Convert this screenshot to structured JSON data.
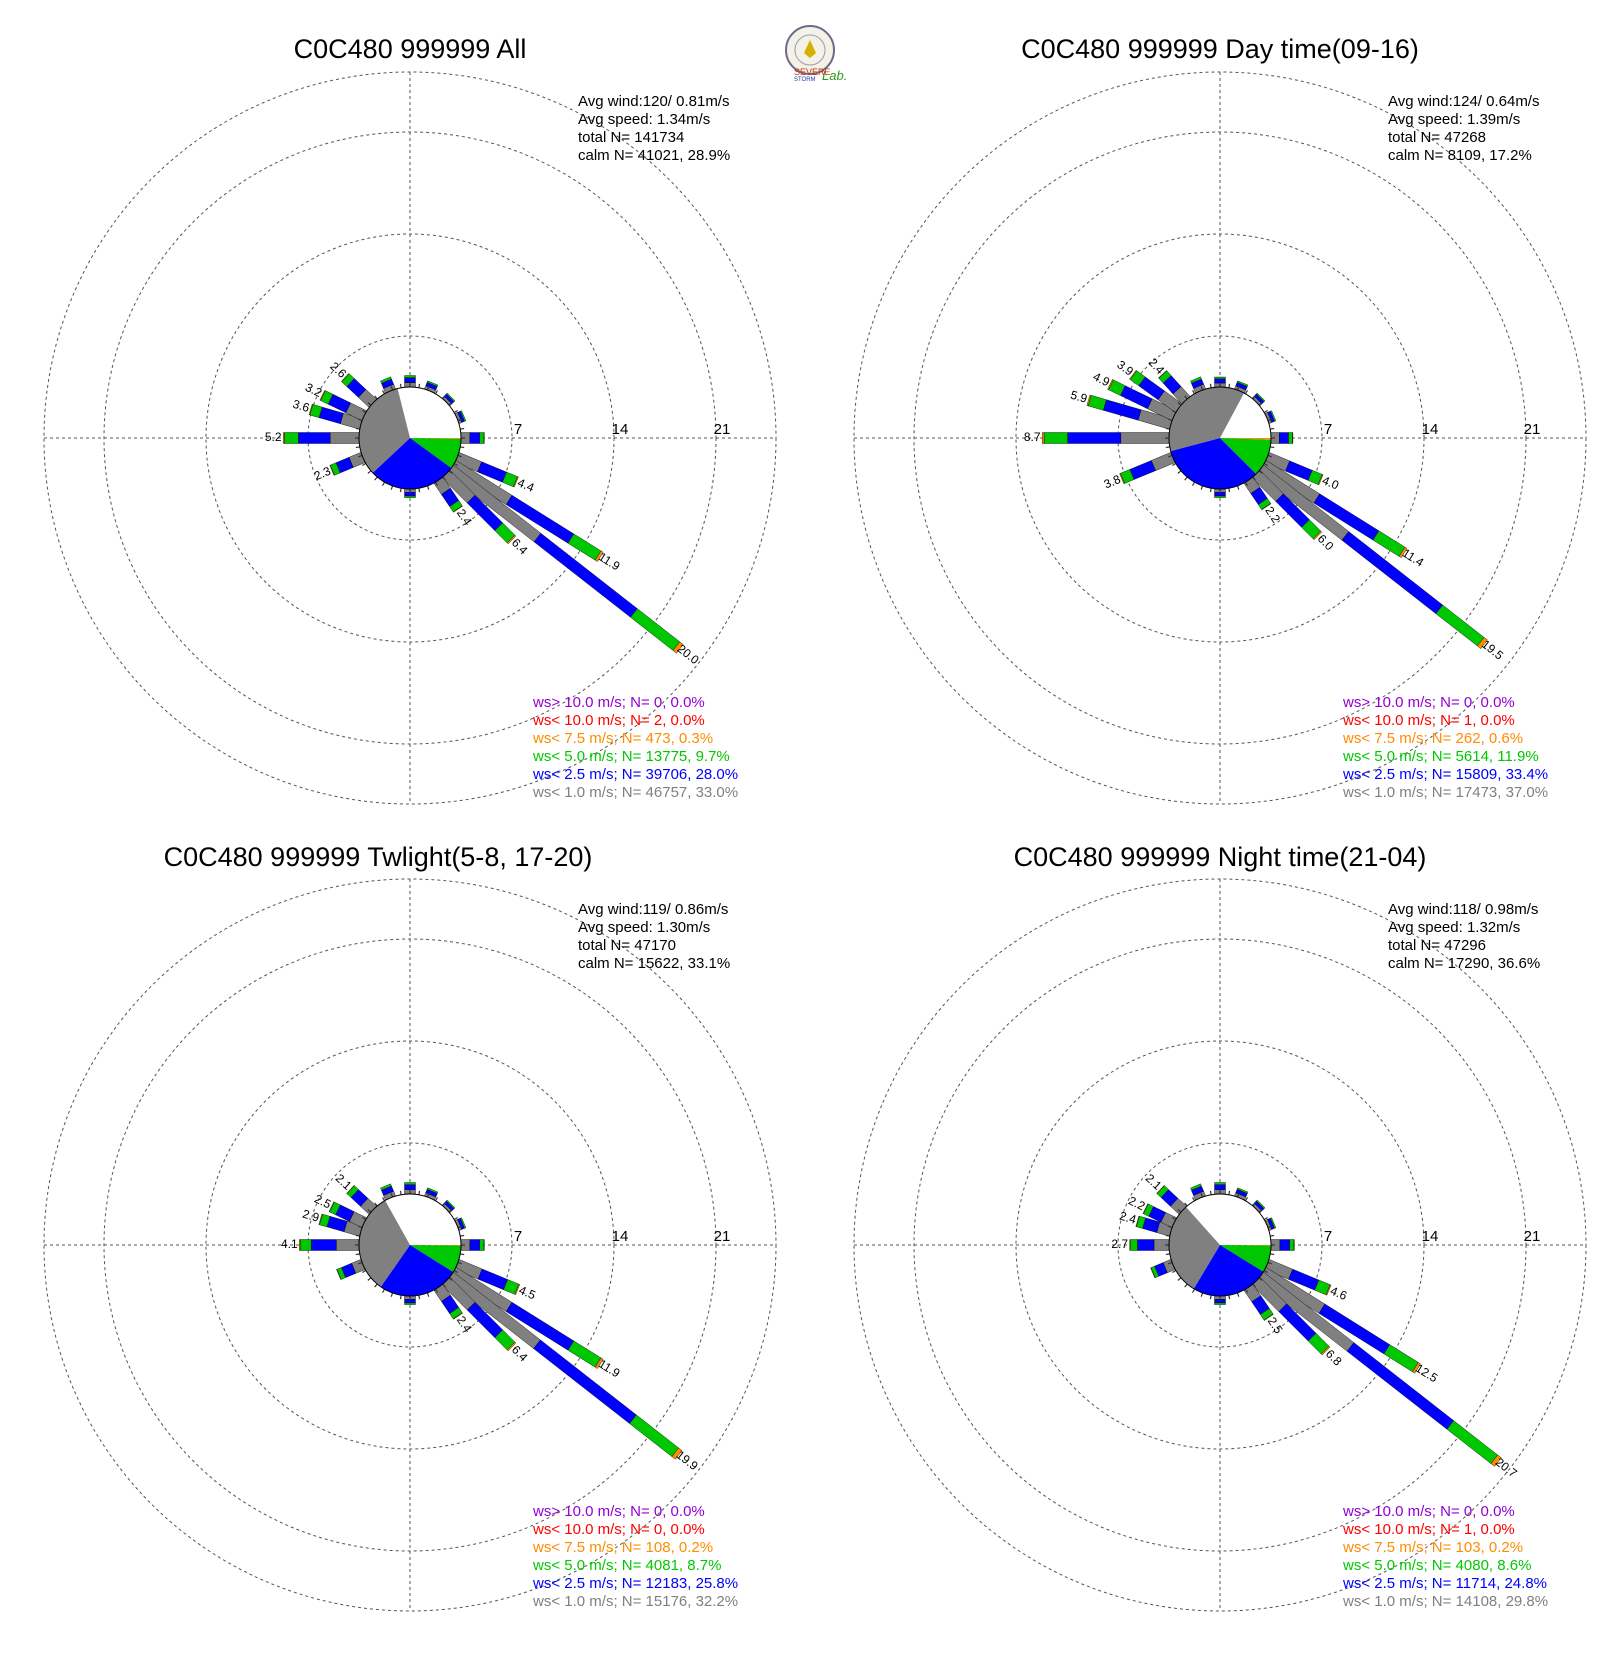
{
  "logo": {
    "text_a": "SEVERE",
    "text_b": "STORM",
    "text_c": "Lab."
  },
  "colors": {
    "calm": "#ffffff",
    "ws_lt_1": "#808080",
    "ws_lt_2_5": "#0000ff",
    "ws_lt_5": "#00c800",
    "ws_lt_7_5": "#ff8c00",
    "ws_lt_10": "#ff0000",
    "ws_gt_10": "#9400d3"
  },
  "ring_labels": [
    "7",
    "14",
    "21"
  ],
  "chart_data": [
    {
      "type": "polar-bar",
      "title": "C0C480 999999 All",
      "stats": [
        "Avg wind:120/ 0.81m/s",
        "Avg speed: 1.34m/s",
        "total N=      141734",
        "calm N=  41021,  28.9%"
      ],
      "pie": {
        "calm": 28.9,
        "lt1": 33.0,
        "lt2_5": 28.0,
        "lt5": 9.7,
        "lt7_5": 0.3
      },
      "rmax": 21,
      "bars": [
        {
          "dir": 0,
          "total": 0.8,
          "label": ""
        },
        {
          "dir": 22.5,
          "total": 0.6,
          "label": ""
        },
        {
          "dir": 45,
          "total": 0.5,
          "label": ""
        },
        {
          "dir": 67.5,
          "total": 0.5,
          "label": ""
        },
        {
          "dir": 90,
          "total": 1.6,
          "label": ""
        },
        {
          "dir": 112.5,
          "total": 4.4,
          "label": "4.4"
        },
        {
          "dir": 122,
          "total": 11.9,
          "label": "11.9"
        },
        {
          "dir": 128,
          "total": 20.0,
          "label": "20.0"
        },
        {
          "dir": 135,
          "total": 6.4,
          "label": "6.4"
        },
        {
          "dir": 146,
          "total": 2.4,
          "label": "2.4"
        },
        {
          "dir": 180,
          "total": 0.6,
          "label": ""
        },
        {
          "dir": 247.5,
          "total": 2.3,
          "label": "2.3"
        },
        {
          "dir": 270,
          "total": 5.2,
          "label": "5.2"
        },
        {
          "dir": 286,
          "total": 3.6,
          "label": "3.6"
        },
        {
          "dir": 296,
          "total": 3.2,
          "label": "3.2"
        },
        {
          "dir": 313,
          "total": 2.6,
          "label": "2.6"
        },
        {
          "dir": 337.5,
          "total": 0.9,
          "label": ""
        }
      ],
      "legend": [
        {
          "text": "ws> 10.0 m/s; N=     0,  0.0%",
          "color": "#9400d3"
        },
        {
          "text": "ws< 10.0 m/s; N=     2,  0.0%",
          "color": "#ff0000"
        },
        {
          "text": "ws<  7.5 m/s; N=   473,  0.3%",
          "color": "#ff8c00"
        },
        {
          "text": "ws<  5.0 m/s; N= 13775,  9.7%",
          "color": "#00c800"
        },
        {
          "text": "ws<  2.5 m/s; N= 39706, 28.0%",
          "color": "#0000ff"
        },
        {
          "text": "ws<  1.0 m/s; N= 46757, 33.0%",
          "color": "#808080"
        }
      ]
    },
    {
      "type": "polar-bar",
      "title": "C0C480 999999 Day time(09-16)",
      "stats": [
        "Avg wind:124/ 0.64m/s",
        "Avg speed: 1.39m/s",
        "total N=       47268",
        "calm N=   8109,  17.2%"
      ],
      "pie": {
        "calm": 17.2,
        "lt1": 37.0,
        "lt2_5": 33.4,
        "lt5": 11.9,
        "lt7_5": 0.6
      },
      "rmax": 21,
      "bars": [
        {
          "dir": 0,
          "total": 0.7,
          "label": ""
        },
        {
          "dir": 22.5,
          "total": 0.6,
          "label": ""
        },
        {
          "dir": 45,
          "total": 0.5,
          "label": ""
        },
        {
          "dir": 67.5,
          "total": 0.5,
          "label": ""
        },
        {
          "dir": 90,
          "total": 1.5,
          "label": ""
        },
        {
          "dir": 112.5,
          "total": 4.0,
          "label": "4.0"
        },
        {
          "dir": 122,
          "total": 11.4,
          "label": "11.4"
        },
        {
          "dir": 128,
          "total": 19.5,
          "label": "19.5"
        },
        {
          "dir": 135,
          "total": 6.0,
          "label": "6.0"
        },
        {
          "dir": 146,
          "total": 2.2,
          "label": "2.2"
        },
        {
          "dir": 180,
          "total": 0.6,
          "label": ""
        },
        {
          "dir": 247.5,
          "total": 3.8,
          "label": "3.8"
        },
        {
          "dir": 270,
          "total": 8.7,
          "label": "8.7"
        },
        {
          "dir": 286,
          "total": 5.9,
          "label": "5.9"
        },
        {
          "dir": 296,
          "total": 4.9,
          "label": "4.9"
        },
        {
          "dir": 306,
          "total": 3.9,
          "label": "3.9"
        },
        {
          "dir": 318,
          "total": 2.4,
          "label": "2.4"
        },
        {
          "dir": 337.5,
          "total": 0.9,
          "label": ""
        }
      ],
      "legend": [
        {
          "text": "ws> 10.0 m/s; N=     0,  0.0%",
          "color": "#9400d3"
        },
        {
          "text": "ws< 10.0 m/s; N=     1,  0.0%",
          "color": "#ff0000"
        },
        {
          "text": "ws<  7.5 m/s; N=   262,  0.6%",
          "color": "#ff8c00"
        },
        {
          "text": "ws<  5.0 m/s; N=  5614, 11.9%",
          "color": "#00c800"
        },
        {
          "text": "ws<  2.5 m/s; N= 15809, 33.4%",
          "color": "#0000ff"
        },
        {
          "text": "ws<  1.0 m/s; N= 17473, 37.0%",
          "color": "#808080"
        }
      ]
    },
    {
      "type": "polar-bar",
      "title": "C0C480 999999 Twlight(5-8, 17-20)",
      "stats": [
        "Avg wind:119/ 0.86m/s",
        "Avg speed: 1.30m/s",
        "total N=       47170",
        "calm N=  15622,  33.1%"
      ],
      "pie": {
        "calm": 33.1,
        "lt1": 32.2,
        "lt2_5": 25.8,
        "lt5": 8.7,
        "lt7_5": 0.2
      },
      "rmax": 21,
      "bars": [
        {
          "dir": 0,
          "total": 0.8,
          "label": ""
        },
        {
          "dir": 22.5,
          "total": 0.6,
          "label": ""
        },
        {
          "dir": 45,
          "total": 0.5,
          "label": ""
        },
        {
          "dir": 67.5,
          "total": 0.5,
          "label": ""
        },
        {
          "dir": 90,
          "total": 1.6,
          "label": ""
        },
        {
          "dir": 112.5,
          "total": 4.5,
          "label": "4.5"
        },
        {
          "dir": 122,
          "total": 11.9,
          "label": "11.9"
        },
        {
          "dir": 128,
          "total": 19.9,
          "label": "19.9"
        },
        {
          "dir": 135,
          "total": 6.4,
          "label": "6.4"
        },
        {
          "dir": 146,
          "total": 2.4,
          "label": "2.4"
        },
        {
          "dir": 180,
          "total": 0.6,
          "label": ""
        },
        {
          "dir": 247.5,
          "total": 1.8,
          "label": ""
        },
        {
          "dir": 270,
          "total": 4.1,
          "label": "4.1"
        },
        {
          "dir": 286,
          "total": 2.9,
          "label": "2.9"
        },
        {
          "dir": 296,
          "total": 2.5,
          "label": "2.5"
        },
        {
          "dir": 313,
          "total": 2.1,
          "label": "2.1"
        },
        {
          "dir": 337.5,
          "total": 0.9,
          "label": ""
        }
      ],
      "legend": [
        {
          "text": "ws> 10.0 m/s; N=     0,  0.0%",
          "color": "#9400d3"
        },
        {
          "text": "ws< 10.0 m/s; N=     0,  0.0%",
          "color": "#ff0000"
        },
        {
          "text": "ws<  7.5 m/s; N=   108,  0.2%",
          "color": "#ff8c00"
        },
        {
          "text": "ws<  5.0 m/s; N=  4081,  8.7%",
          "color": "#00c800"
        },
        {
          "text": "ws<  2.5 m/s; N= 12183, 25.8%",
          "color": "#0000ff"
        },
        {
          "text": "ws<  1.0 m/s; N= 15176, 32.2%",
          "color": "#808080"
        }
      ]
    },
    {
      "type": "polar-bar",
      "title": "C0C480 999999 Night time(21-04)",
      "stats": [
        "Avg wind:118/ 0.98m/s",
        "Avg speed: 1.32m/s",
        "total N=       47296",
        "calm N=  17290,  36.6%"
      ],
      "pie": {
        "calm": 36.6,
        "lt1": 29.8,
        "lt2_5": 24.8,
        "lt5": 8.6,
        "lt7_5": 0.2
      },
      "rmax": 21,
      "bars": [
        {
          "dir": 0,
          "total": 0.8,
          "label": ""
        },
        {
          "dir": 22.5,
          "total": 0.6,
          "label": ""
        },
        {
          "dir": 45,
          "total": 0.5,
          "label": ""
        },
        {
          "dir": 67.5,
          "total": 0.5,
          "label": ""
        },
        {
          "dir": 90,
          "total": 1.6,
          "label": ""
        },
        {
          "dir": 112.5,
          "total": 4.6,
          "label": "4.6"
        },
        {
          "dir": 122,
          "total": 12.5,
          "label": "12.5"
        },
        {
          "dir": 128,
          "total": 20.7,
          "label": "20.7"
        },
        {
          "dir": 135,
          "total": 6.8,
          "label": "6.8"
        },
        {
          "dir": 146,
          "total": 2.5,
          "label": "2.5"
        },
        {
          "dir": 180,
          "total": 0.6,
          "label": ""
        },
        {
          "dir": 247.5,
          "total": 1.5,
          "label": ""
        },
        {
          "dir": 270,
          "total": 2.7,
          "label": "2.7"
        },
        {
          "dir": 286,
          "total": 2.4,
          "label": "2.4"
        },
        {
          "dir": 296,
          "total": 2.2,
          "label": "2.2"
        },
        {
          "dir": 313,
          "total": 2.1,
          "label": "2.1"
        },
        {
          "dir": 337.5,
          "total": 0.9,
          "label": ""
        }
      ],
      "legend": [
        {
          "text": "ws> 10.0 m/s; N=     0,  0.0%",
          "color": "#9400d3"
        },
        {
          "text": "ws< 10.0 m/s; N=     1,  0.0%",
          "color": "#ff0000"
        },
        {
          "text": "ws<  7.5 m/s; N=   103,  0.2%",
          "color": "#ff8c00"
        },
        {
          "text": "ws<  5.0 m/s; N=  4080,  8.6%",
          "color": "#00c800"
        },
        {
          "text": "ws<  2.5 m/s; N= 11714, 24.8%",
          "color": "#0000ff"
        },
        {
          "text": "ws<  1.0 m/s; N= 14108, 29.8%",
          "color": "#808080"
        }
      ]
    }
  ]
}
